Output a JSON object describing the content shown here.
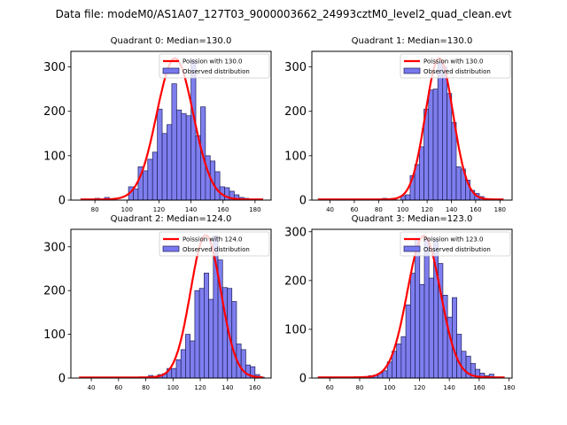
{
  "figure": {
    "suptitle": "Data file: modeM0/AS1A07_127T03_9000003662_24993cztM0_level2_quad_clean.evt"
  },
  "colors": {
    "bar_fill": "#7777ee",
    "bar_edge": "#20205a",
    "curve": "#ff0000"
  },
  "chart_data": [
    {
      "type": "bar",
      "title": "Quadrant 0: Median=130.0",
      "xlim": [
        65,
        190
      ],
      "ylim": [
        0,
        335
      ],
      "xticks": [
        80,
        100,
        120,
        140,
        160,
        180
      ],
      "yticks": [
        0,
        100,
        200,
        300
      ],
      "legend": {
        "placement": "top-right",
        "entries": [
          "Poission with 130.0",
          "Observed distribution"
        ]
      },
      "bin_width": 3,
      "bins_start": 71,
      "values": [
        0,
        0,
        0,
        4,
        0,
        6,
        0,
        0,
        0,
        0,
        30,
        25,
        75,
        66,
        92,
        108,
        205,
        150,
        170,
        262,
        203,
        195,
        190,
        315,
        145,
        210,
        100,
        88,
        64,
        30,
        28,
        20,
        12,
        6,
        4,
        2,
        1,
        0,
        0,
        0
      ],
      "curve": {
        "label": "Poission with 130.0",
        "mean": 130.0,
        "peak": 318,
        "x_range": [
          71,
          185
        ]
      }
    },
    {
      "type": "bar",
      "title": "Quadrant 1: Median=130.0",
      "xlim": [
        25,
        190
      ],
      "ylim": [
        0,
        335
      ],
      "xticks": [
        40,
        60,
        80,
        100,
        120,
        140,
        160,
        180
      ],
      "yticks": [
        0,
        100,
        200,
        300
      ],
      "legend": {
        "placement": "top-right",
        "entries": [
          "Poission with 130.0",
          "Observed distribution"
        ]
      },
      "bin_width": 3.8,
      "bins_start": 30,
      "values": [
        0,
        0,
        0,
        0,
        0,
        0,
        0,
        0,
        0,
        0,
        0,
        0,
        0,
        0,
        4,
        2,
        4,
        0,
        10,
        12,
        55,
        80,
        120,
        205,
        248,
        250,
        310,
        300,
        240,
        175,
        75,
        70,
        45,
        22,
        15,
        8,
        3,
        1,
        0,
        0
      ],
      "curve": {
        "label": "Poission with 130.0",
        "mean": 130.0,
        "peak": 318,
        "x_range": [
          30,
          183
        ]
      }
    },
    {
      "type": "bar",
      "title": "Quadrant 2: Median=124.0",
      "xlim": [
        25,
        172
      ],
      "ylim": [
        0,
        340
      ],
      "xticks": [
        40,
        60,
        80,
        100,
        120,
        140,
        160
      ],
      "yticks": [
        0,
        100,
        200,
        300
      ],
      "legend": {
        "placement": "top-right",
        "entries": [
          "Poission with 124.0",
          "Observed distribution"
        ]
      },
      "bin_width": 3.4,
      "bins_start": 31,
      "values": [
        0,
        0,
        0,
        0,
        0,
        0,
        0,
        0,
        0,
        0,
        0,
        0,
        0,
        0,
        0,
        6,
        2,
        8,
        10,
        22,
        22,
        42,
        65,
        100,
        85,
        200,
        205,
        240,
        180,
        325,
        270,
        207,
        205,
        175,
        78,
        65,
        30,
        26,
        8,
        2
      ],
      "curve": {
        "label": "Poission with 124.0",
        "mean": 124.0,
        "peak": 325,
        "x_range": [
          31,
          166
        ]
      }
    },
    {
      "type": "bar",
      "title": "Quadrant 3: Median=123.0",
      "xlim": [
        48,
        182
      ],
      "ylim": [
        0,
        305
      ],
      "xticks": [
        60,
        80,
        100,
        120,
        140,
        160,
        180
      ],
      "yticks": [
        0,
        100,
        200,
        300
      ],
      "legend": {
        "placement": "top-right",
        "entries": [
          "Poission with 123.0",
          "Observed distribution"
        ]
      },
      "bin_width": 3.1,
      "bins_start": 52,
      "values": [
        0,
        0,
        0,
        0,
        0,
        0,
        0,
        0,
        3,
        2,
        3,
        5,
        6,
        10,
        15,
        33,
        55,
        70,
        85,
        150,
        215,
        285,
        192,
        285,
        205,
        285,
        235,
        170,
        125,
        165,
        90,
        55,
        45,
        30,
        18,
        10,
        5,
        8,
        1,
        0
      ],
      "curve": {
        "label": "Poission with 123.0",
        "mean": 123.0,
        "peak": 290,
        "x_range": [
          52,
          177
        ]
      }
    }
  ]
}
